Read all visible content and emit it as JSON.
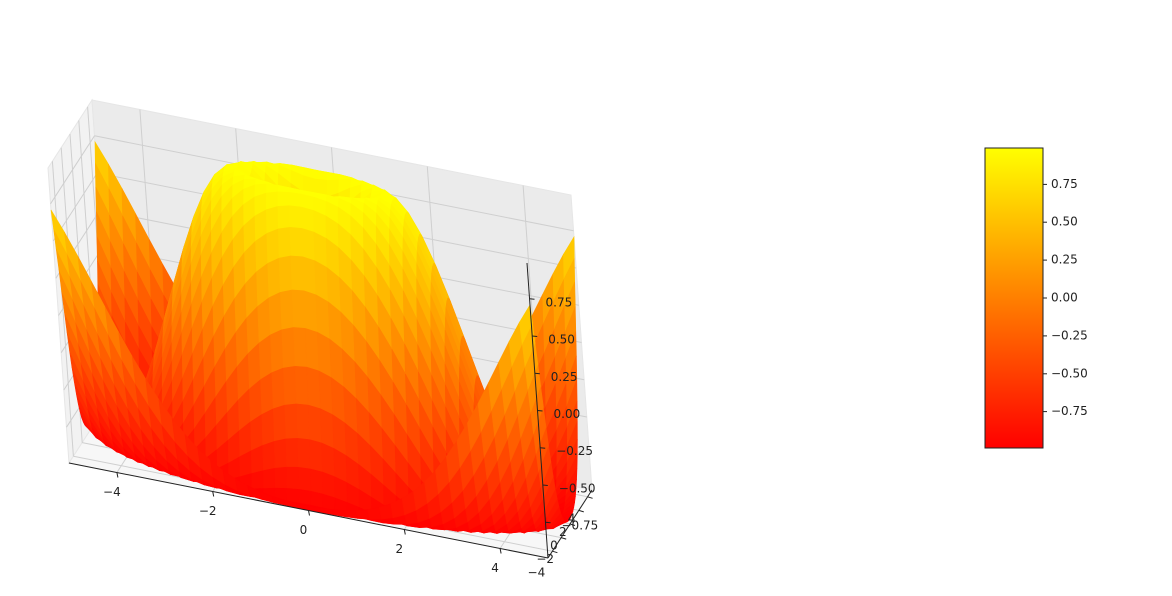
{
  "chart_data": {
    "type": "surface",
    "function": "z = sin(sqrt(x^2 + y^2))",
    "colormap": "autumn",
    "grid": true,
    "x": {
      "range": [
        -5,
        5
      ],
      "ticks": [
        -4,
        -2,
        0,
        2,
        4
      ],
      "tick_labels": [
        "−4",
        "−2",
        "0",
        "2",
        "4"
      ]
    },
    "y": {
      "range": [
        -5,
        5
      ],
      "ticks": [
        -4,
        -2,
        0,
        2,
        4
      ],
      "tick_labels": [
        "−4",
        "−2",
        "0",
        "2",
        "4"
      ]
    },
    "z": {
      "range": [
        -0.99,
        0.99
      ],
      "ticks": [
        -0.75,
        -0.5,
        -0.25,
        0,
        0.25,
        0.5,
        0.75
      ],
      "tick_labels": [
        "−0.75",
        "−0.50",
        "−0.25",
        "0.00",
        "0.25",
        "0.50",
        "0.75"
      ]
    },
    "colorbar": {
      "location": "right",
      "range": [
        -0.99,
        0.99
      ],
      "ticks": [
        -0.75,
        -0.5,
        -0.25,
        0,
        0.25,
        0.5,
        0.75
      ],
      "tick_labels": [
        "−0.75",
        "−0.50",
        "−0.25",
        "0.00",
        "0.25",
        "0.50",
        "0.75"
      ],
      "color_low": "#ff0000",
      "color_high": "#ffff00"
    }
  }
}
